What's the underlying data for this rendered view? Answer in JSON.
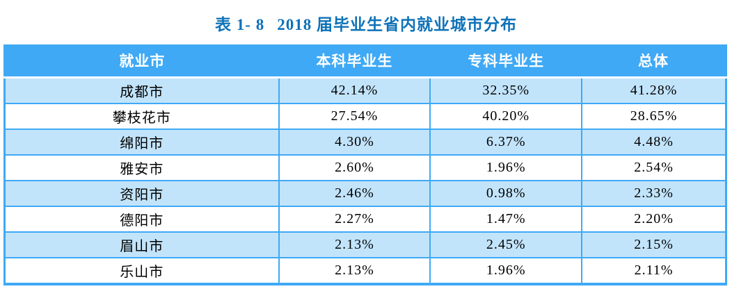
{
  "title": {
    "tag": "表 1- 8",
    "text": "2018 届毕业生省内就业城市分布"
  },
  "colors": {
    "title_text": "#0e72b8",
    "header_bg": "#3fa9f5",
    "header_text": "#ffffff",
    "border": "#3fa9f5",
    "row_alt_bg": "#c2e4fb",
    "row_bg": "#ffffff",
    "cell_text": "#000000"
  },
  "table": {
    "headers": [
      "就业市",
      "本科毕业生",
      "专科毕业生",
      "总体"
    ],
    "column_names": [
      "city-cell",
      "undergrad-cell",
      "associate-cell",
      "overall-cell"
    ],
    "rows": [
      [
        "成都市",
        "42.14%",
        "32.35%",
        "41.28%"
      ],
      [
        "攀枝花市",
        "27.54%",
        "40.20%",
        "28.65%"
      ],
      [
        "绵阳市",
        "4.30%",
        "6.37%",
        "4.48%"
      ],
      [
        "雅安市",
        "2.60%",
        "1.96%",
        "2.54%"
      ],
      [
        "资阳市",
        "2.46%",
        "0.98%",
        "2.33%"
      ],
      [
        "德阳市",
        "2.27%",
        "1.47%",
        "2.20%"
      ],
      [
        "眉山市",
        "2.13%",
        "2.45%",
        "2.15%"
      ],
      [
        "乐山市",
        "2.13%",
        "1.96%",
        "2.11%"
      ]
    ]
  }
}
